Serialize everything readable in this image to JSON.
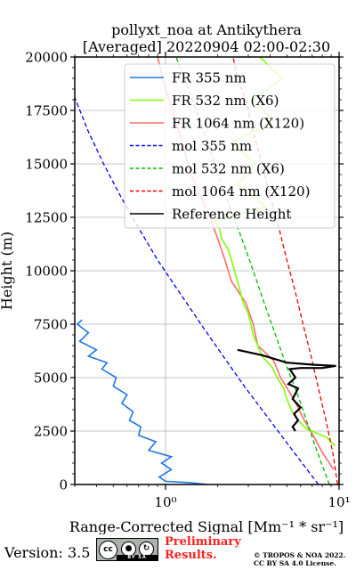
{
  "chart_data": {
    "type": "line",
    "title": "pollyxt_noa at Antikythera",
    "subtitle": "[Averaged] 20220904 02:00-02:30",
    "xlabel": "Range-Corrected Signal [Mm⁻¹ * sr⁻¹]",
    "ylabel": "Height (m)",
    "xscale": "log",
    "xlim": [
      0.3,
      10
    ],
    "ylim": [
      0,
      20000
    ],
    "x_ticks": [
      "10⁰",
      "10¹"
    ],
    "y_ticks": [
      "0",
      "2500",
      "5000",
      "7500",
      "10000",
      "12500",
      "15000",
      "17500",
      "20000"
    ],
    "grid": true,
    "legend_position": "top-right",
    "series": [
      {
        "name": "FR 355 nm",
        "color": "#1f77e4",
        "points": [
          [
            1.75,
            0
          ],
          [
            1.4,
            80
          ],
          [
            1.0,
            150
          ],
          [
            0.92,
            350
          ],
          [
            1.08,
            700
          ],
          [
            0.95,
            1000
          ],
          [
            1.08,
            1300
          ],
          [
            0.8,
            1600
          ],
          [
            0.88,
            2000
          ],
          [
            0.7,
            2300
          ],
          [
            0.72,
            2700
          ],
          [
            0.62,
            3000
          ],
          [
            0.65,
            3400
          ],
          [
            0.56,
            3800
          ],
          [
            0.6,
            4200
          ],
          [
            0.5,
            4600
          ],
          [
            0.52,
            5000
          ],
          [
            0.43,
            5400
          ],
          [
            0.46,
            5700
          ],
          [
            0.36,
            6000
          ],
          [
            0.4,
            6300
          ],
          [
            0.32,
            6700
          ],
          [
            0.36,
            7100
          ],
          [
            0.31,
            7500
          ],
          [
            0.33,
            7700
          ]
        ]
      },
      {
        "name": "FR 532 nm (X6)",
        "color": "#7fff00",
        "points": [
          [
            9.5,
            1800
          ],
          [
            8.5,
            2200
          ],
          [
            6.5,
            2600
          ],
          [
            5.8,
            3000
          ],
          [
            5.3,
            3500
          ],
          [
            5.0,
            4000
          ],
          [
            4.8,
            4500
          ],
          [
            4.4,
            5000
          ],
          [
            4.1,
            5500
          ],
          [
            3.6,
            6000
          ],
          [
            3.4,
            6500
          ],
          [
            3.2,
            7000
          ],
          [
            3.1,
            7500
          ],
          [
            3.0,
            8000
          ],
          [
            2.8,
            8500
          ],
          [
            2.7,
            9000
          ],
          [
            2.6,
            9500
          ],
          [
            2.5,
            10000
          ],
          [
            2.4,
            10500
          ],
          [
            2.3,
            11000
          ],
          [
            2.1,
            11500
          ],
          [
            2.05,
            12000
          ],
          [
            1.9,
            12300
          ],
          [
            2.3,
            12500
          ],
          [
            3.8,
            13000
          ],
          [
            2.6,
            14000
          ],
          [
            3.3,
            15000
          ],
          [
            2.4,
            16000
          ],
          [
            4.2,
            17000
          ],
          [
            3.2,
            18000
          ],
          [
            4.7,
            19000
          ],
          [
            3.5,
            20000
          ]
        ]
      },
      {
        "name": "FR 1064 nm (X120)",
        "color": "#ff6b6b",
        "points": [
          [
            9.3,
            700
          ],
          [
            8.0,
            1500
          ],
          [
            7.2,
            2200
          ],
          [
            6.3,
            3000
          ],
          [
            5.8,
            3600
          ],
          [
            5.2,
            4300
          ],
          [
            4.6,
            5000
          ],
          [
            4.2,
            5800
          ],
          [
            3.4,
            6500
          ],
          [
            3.2,
            7500
          ],
          [
            2.9,
            8500
          ],
          [
            2.4,
            9500
          ],
          [
            2.2,
            10500
          ],
          [
            2.0,
            11500
          ],
          [
            1.8,
            12500
          ],
          [
            1.6,
            13500
          ],
          [
            1.4,
            14500
          ],
          [
            1.3,
            15500
          ],
          [
            1.2,
            16500
          ],
          [
            1.1,
            17500
          ],
          [
            1.0,
            18500
          ],
          [
            0.9,
            20000
          ]
        ]
      },
      {
        "name": "mol 355 nm",
        "color": "#0000ff",
        "dash": true,
        "points": [
          [
            7.6,
            0
          ],
          [
            5.5,
            1500
          ],
          [
            4.0,
            3000
          ],
          [
            2.9,
            4500
          ],
          [
            2.15,
            6000
          ],
          [
            1.6,
            7500
          ],
          [
            1.2,
            9000
          ],
          [
            0.9,
            10500
          ],
          [
            0.7,
            12000
          ],
          [
            0.55,
            13500
          ],
          [
            0.44,
            15000
          ],
          [
            0.36,
            16500
          ],
          [
            0.3,
            18100
          ]
        ]
      },
      {
        "name": "mol 532 nm (X6)",
        "color": "#00bb00",
        "dash": true,
        "points": [
          [
            8.8,
            0
          ],
          [
            7.9,
            1000
          ],
          [
            6.8,
            2500
          ],
          [
            5.9,
            4000
          ],
          [
            5.0,
            5500
          ],
          [
            4.3,
            7000
          ],
          [
            3.7,
            8500
          ],
          [
            3.2,
            10000
          ],
          [
            2.75,
            11500
          ],
          [
            2.35,
            13000
          ],
          [
            2.0,
            14500
          ],
          [
            1.75,
            16000
          ],
          [
            1.5,
            17500
          ],
          [
            1.28,
            19000
          ],
          [
            1.15,
            20000
          ]
        ]
      },
      {
        "name": "mol 1064 nm (X120)",
        "color": "#ee0000",
        "dash": true,
        "points": [
          [
            9.8,
            0
          ],
          [
            9.2,
            1500
          ],
          [
            8.4,
            3000
          ],
          [
            7.6,
            4500
          ],
          [
            6.9,
            6000
          ],
          [
            6.2,
            7500
          ],
          [
            5.6,
            9000
          ],
          [
            5.0,
            10500
          ],
          [
            4.5,
            12000
          ],
          [
            4.0,
            13500
          ],
          [
            3.6,
            15000
          ],
          [
            3.2,
            16500
          ],
          [
            2.9,
            18000
          ],
          [
            2.6,
            19000
          ],
          [
            2.45,
            20000
          ]
        ]
      },
      {
        "name": "Reference Height",
        "color": "#000000",
        "points": [
          [
            2.6,
            6300
          ],
          [
            3.6,
            6050
          ],
          [
            5.0,
            5700
          ],
          [
            7.2,
            5600
          ],
          [
            9.6,
            5550
          ],
          [
            8.0,
            5450
          ],
          [
            6.0,
            5450
          ],
          [
            5.2,
            5400
          ],
          [
            5.6,
            5000
          ],
          [
            5.1,
            4700
          ],
          [
            5.8,
            4500
          ],
          [
            5.4,
            4000
          ],
          [
            6.0,
            3600
          ],
          [
            5.5,
            3300
          ],
          [
            5.8,
            3000
          ],
          [
            5.4,
            2700
          ],
          [
            5.6,
            2500
          ]
        ]
      }
    ]
  },
  "footer": {
    "version": "Version: 3.5",
    "license_badge": "BY  SA",
    "preliminary": "Preliminary\nResults.",
    "copyright": "© TROPOS & NOA 2022.\nCC BY SA 4.0 License."
  }
}
